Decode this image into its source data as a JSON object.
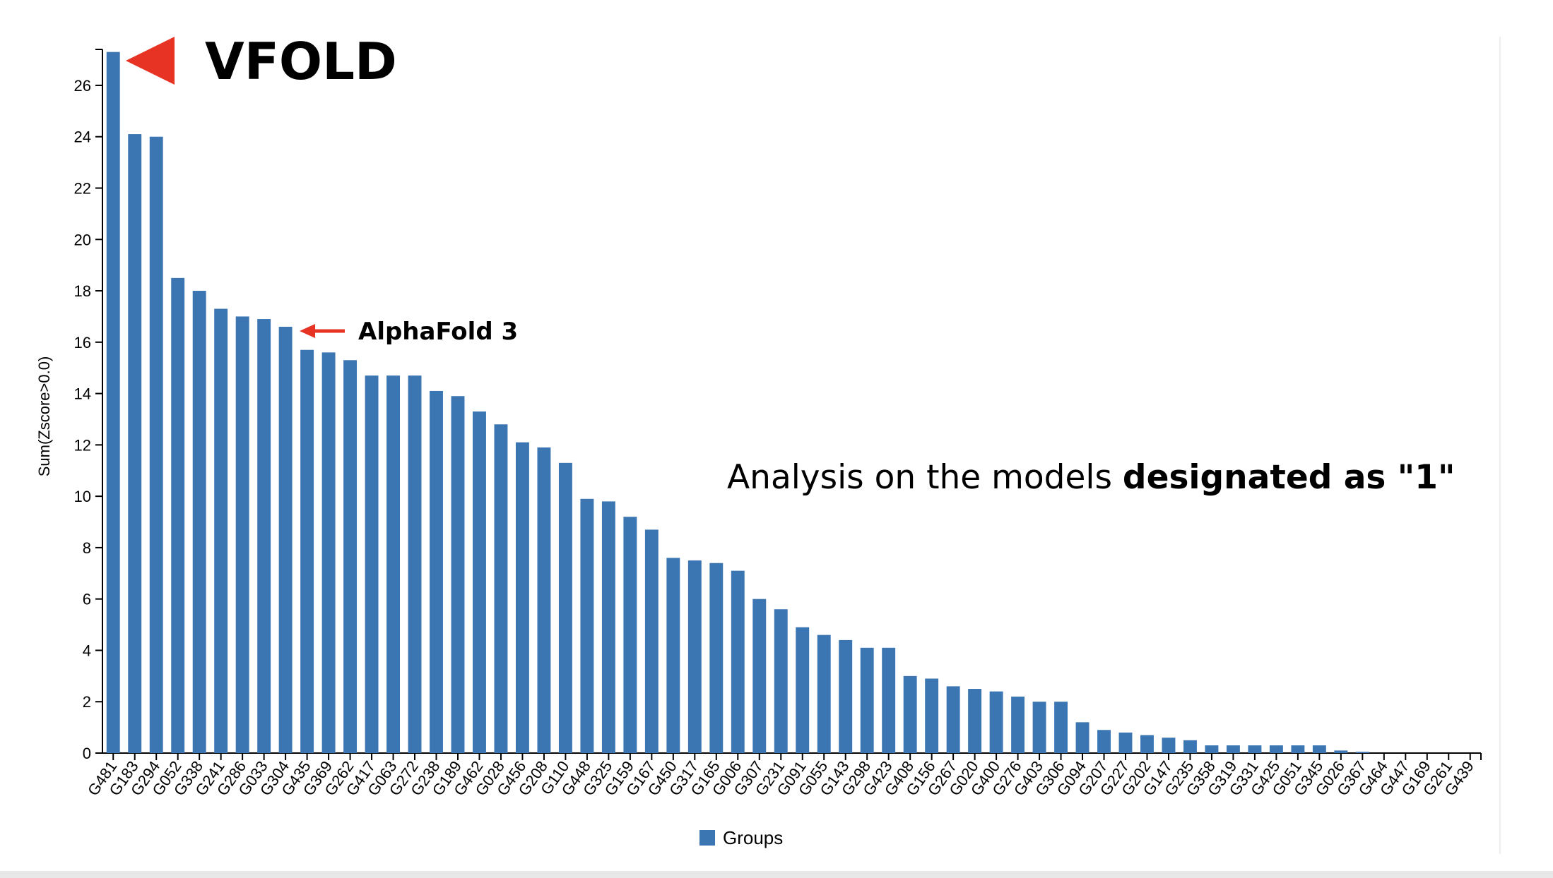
{
  "chart_data": {
    "type": "bar",
    "title": "",
    "ylabel": "Sum(Zscore>0.0)",
    "xlabel": "",
    "ylim": [
      0,
      27.4
    ],
    "yticks": [
      0,
      2,
      4,
      6,
      8,
      10,
      12,
      14,
      16,
      18,
      20,
      22,
      24,
      26
    ],
    "legend": {
      "label": "Groups",
      "position": "bottom-center"
    },
    "grid": false,
    "bar_color": "#3b76b3",
    "categories": [
      "G481",
      "G183",
      "G294",
      "G052",
      "G338",
      "G241",
      "G286",
      "G033",
      "G304",
      "G435",
      "G369",
      "G262",
      "G417",
      "G063",
      "G272",
      "G238",
      "G189",
      "G462",
      "G028",
      "G456",
      "G208",
      "G110",
      "G448",
      "G325",
      "G159",
      "G167",
      "G450",
      "G317",
      "G165",
      "G006",
      "G307",
      "G231",
      "G091",
      "G055",
      "G143",
      "G298",
      "G423",
      "G408",
      "G156",
      "G267",
      "G020",
      "G400",
      "G276",
      "G403",
      "G306",
      "G094",
      "G207",
      "G227",
      "G202",
      "G147",
      "G235",
      "G358",
      "G319",
      "G331",
      "G425",
      "G051",
      "G345",
      "G026",
      "G367",
      "G464",
      "G447",
      "G169",
      "G261",
      "G439"
    ],
    "series": [
      {
        "name": "Groups",
        "values": [
          27.3,
          24.1,
          24.0,
          18.5,
          18.0,
          17.3,
          17.0,
          16.9,
          16.6,
          15.7,
          15.6,
          15.3,
          14.7,
          14.7,
          14.7,
          14.1,
          13.9,
          13.3,
          12.8,
          12.1,
          11.9,
          11.3,
          9.9,
          9.8,
          9.2,
          8.7,
          7.6,
          7.5,
          7.4,
          7.1,
          6.0,
          5.6,
          4.9,
          4.6,
          4.4,
          4.1,
          4.1,
          3.0,
          2.9,
          2.6,
          2.5,
          2.4,
          2.2,
          2.0,
          2.0,
          1.2,
          0.9,
          0.8,
          0.7,
          0.6,
          0.5,
          0.3,
          0.3,
          0.3,
          0.3,
          0.3,
          0.3,
          0.1,
          0.05,
          0.0,
          0.0,
          0.0,
          0.0,
          0.0
        ]
      }
    ],
    "annotations": [
      {
        "text": "VFOLD",
        "target": "G481",
        "color": "#e63323"
      },
      {
        "text": "AlphaFold 3",
        "target": "G304",
        "color": "#e63323"
      },
      {
        "text_prefix": "Analysis on the models ",
        "text_bold": "designated as \"1\""
      }
    ]
  }
}
